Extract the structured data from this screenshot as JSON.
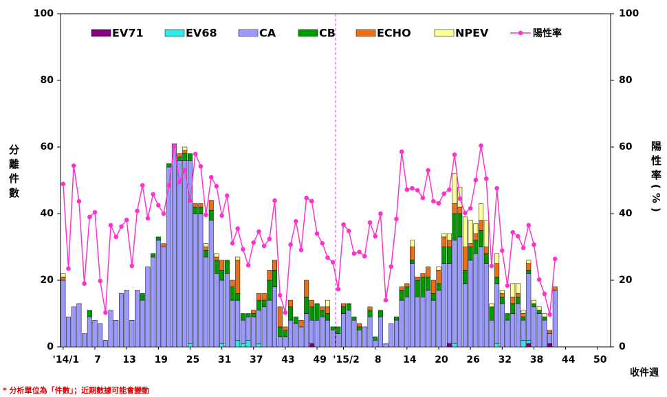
{
  "chart_data": {
    "type": "bar",
    "y_label": "分離件數",
    "y2_label": "陽性率(%)",
    "x_label": "收件週",
    "footnote": "* 分析單位為「件數」；近期數據可能會變動",
    "categories": [
      "'14/1",
      null,
      null,
      null,
      null,
      null,
      "7",
      null,
      null,
      null,
      null,
      null,
      "13",
      null,
      null,
      null,
      null,
      null,
      "19",
      null,
      null,
      null,
      null,
      null,
      "25",
      null,
      null,
      null,
      null,
      null,
      "31",
      null,
      null,
      null,
      null,
      null,
      "37",
      null,
      null,
      null,
      null,
      null,
      "43",
      null,
      null,
      null,
      null,
      null,
      "49",
      null,
      null,
      null,
      null,
      "'15/2",
      null,
      null,
      null,
      null,
      null,
      "8",
      null,
      null,
      null,
      null,
      null,
      "14",
      null,
      null,
      null,
      null,
      null,
      "20",
      null,
      null,
      null,
      null,
      null,
      "26",
      null,
      null,
      null,
      null,
      null,
      "32",
      null,
      null,
      null,
      null,
      null,
      "38",
      null,
      null,
      null,
      null,
      null,
      "44",
      null,
      null,
      null,
      null,
      null,
      "50",
      null,
      null
    ],
    "ylim": [
      0,
      100
    ],
    "yticks": [
      0,
      20,
      40,
      60,
      80,
      100
    ],
    "y2lim": [
      0,
      100
    ],
    "y2ticks": [
      0,
      20,
      40,
      60,
      80,
      100
    ],
    "legend": "top",
    "grid": false,
    "series": [
      {
        "name": "EV71",
        "type": "bar",
        "color": "#800080",
        "values": [
          0,
          0,
          0,
          0,
          0,
          0,
          0,
          0,
          0,
          0,
          0,
          0,
          0,
          0,
          0,
          0,
          0,
          0,
          0,
          0,
          0,
          0,
          0,
          0,
          0,
          0,
          0,
          0,
          0,
          0,
          0,
          0,
          0,
          0,
          0,
          0,
          0,
          0,
          0,
          0,
          0,
          0,
          0,
          0,
          0,
          0,
          0,
          1,
          0,
          0,
          0,
          0,
          0,
          0,
          0,
          0,
          0,
          0,
          0,
          0,
          0,
          0,
          0,
          0,
          0,
          0,
          0,
          0,
          0,
          0,
          0,
          0,
          0,
          1,
          0,
          0,
          0,
          0,
          0,
          0,
          0,
          0,
          0,
          0,
          0,
          0,
          0,
          0,
          1,
          0,
          0,
          0,
          1,
          0,
          null,
          null,
          null,
          null,
          null,
          null,
          null,
          null,
          null,
          null
        ]
      },
      {
        "name": "EV68",
        "type": "bar",
        "color": "#33e6e6",
        "values": [
          0,
          0,
          0,
          0,
          0,
          0,
          0,
          0,
          0,
          0,
          0,
          0,
          0,
          0,
          0,
          0,
          0,
          0,
          0,
          0,
          0,
          0,
          0,
          0,
          1,
          0,
          0,
          0,
          0,
          0,
          1,
          0,
          0,
          2,
          1,
          2,
          0,
          1,
          0,
          0,
          0,
          0,
          0,
          0,
          0,
          0,
          0,
          0,
          0,
          0,
          0,
          0,
          0,
          0,
          0,
          0,
          0,
          0,
          0,
          0,
          0,
          0,
          0,
          0,
          0,
          0,
          0,
          0,
          0,
          0,
          0,
          0,
          0,
          0,
          1,
          0,
          0,
          0,
          0,
          0,
          0,
          0,
          1,
          0,
          0,
          0,
          0,
          2,
          1,
          0,
          0,
          0,
          0,
          0,
          null,
          null,
          null,
          null,
          null,
          null,
          null,
          null,
          null,
          null
        ]
      },
      {
        "name": "CA",
        "type": "bar",
        "color": "#9999ff",
        "values": [
          20,
          9,
          12,
          13,
          4,
          9,
          8,
          7,
          2,
          11,
          8,
          16,
          17,
          8,
          17,
          14,
          24,
          27,
          32,
          30,
          54,
          61,
          56,
          56,
          55,
          40,
          40,
          27,
          38,
          22,
          19,
          22,
          14,
          12,
          7,
          7,
          9,
          10,
          12,
          14,
          18,
          3,
          3,
          8,
          7,
          6,
          10,
          7,
          8,
          9,
          8,
          5,
          4,
          10,
          11,
          8,
          5,
          6,
          9,
          2,
          9,
          1,
          7,
          8,
          14,
          15,
          25,
          15,
          15,
          17,
          14,
          17,
          25,
          24,
          31,
          33,
          19,
          26,
          28,
          30,
          25,
          8,
          18,
          13,
          8,
          10,
          13,
          6,
          20,
          12,
          10,
          8,
          3,
          17,
          null,
          null,
          null,
          null,
          null,
          null,
          null,
          null,
          null,
          null
        ]
      },
      {
        "name": "CB",
        "type": "bar",
        "color": "#009900",
        "values": [
          0,
          0,
          0,
          0,
          0,
          2,
          0,
          0,
          0,
          0,
          0,
          0,
          0,
          0,
          0,
          2,
          0,
          1,
          1,
          0,
          1,
          0,
          1,
          2,
          2,
          2,
          2,
          2,
          3,
          4,
          3,
          4,
          4,
          2,
          2,
          1,
          1,
          3,
          2,
          6,
          5,
          3,
          2,
          4,
          2,
          0,
          5,
          4,
          5,
          2,
          2,
          1,
          2,
          2,
          2,
          1,
          1,
          0,
          2,
          1,
          2,
          0,
          0,
          1,
          3,
          3,
          1,
          5,
          6,
          4,
          2,
          2,
          5,
          5,
          8,
          7,
          4,
          4,
          4,
          5,
          3,
          4,
          2,
          2,
          2,
          3,
          2,
          1,
          1,
          1,
          1,
          1,
          0,
          0,
          null,
          null,
          null,
          null,
          null,
          null,
          null,
          null,
          null,
          null
        ]
      },
      {
        "name": "ECHO",
        "type": "bar",
        "color": "#e8701a",
        "values": [
          1,
          0,
          0,
          0,
          0,
          0,
          0,
          0,
          0,
          0,
          0,
          0,
          0,
          0,
          0,
          0,
          0,
          0,
          0,
          1,
          0,
          0,
          1,
          1,
          0,
          1,
          1,
          1,
          3,
          1,
          3,
          0,
          2,
          10,
          0,
          0,
          1,
          2,
          2,
          3,
          3,
          6,
          1,
          2,
          0,
          2,
          5,
          2,
          0,
          1,
          2,
          0,
          0,
          1,
          0,
          0,
          1,
          0,
          1,
          0,
          0,
          0,
          0,
          0,
          1,
          1,
          4,
          1,
          1,
          3,
          4,
          4,
          3,
          2,
          3,
          2,
          7,
          1,
          2,
          3,
          2,
          0,
          4,
          1,
          0,
          2,
          1,
          1,
          2,
          0,
          0,
          0,
          1,
          1,
          null,
          null,
          null,
          null,
          null,
          null,
          null,
          null,
          null,
          null
        ]
      },
      {
        "name": "NPEV",
        "type": "bar",
        "color": "#ffff99",
        "values": [
          1,
          0,
          0,
          0,
          0,
          0,
          0,
          0,
          0,
          0,
          0,
          0,
          0,
          0,
          0,
          0,
          0,
          0,
          0,
          0,
          0,
          0,
          0,
          1,
          0,
          0,
          0,
          1,
          0,
          1,
          0,
          0,
          0,
          1,
          0,
          0,
          0,
          0,
          0,
          0,
          0,
          0,
          0,
          0,
          0,
          0,
          0,
          0,
          0,
          0,
          2,
          0,
          0,
          0,
          0,
          0,
          0,
          0,
          0,
          0,
          0,
          0,
          0,
          0,
          0,
          0,
          2,
          0,
          0,
          0,
          0,
          1,
          1,
          2,
          9,
          6,
          9,
          7,
          3,
          5,
          8,
          1,
          3,
          1,
          0,
          4,
          3,
          1,
          1,
          1,
          1,
          1,
          0,
          0,
          null,
          null,
          null,
          null,
          null,
          null,
          null,
          null,
          null,
          null
        ]
      },
      {
        "name": "陽性率",
        "type": "line",
        "axis": "y2",
        "color": "#ff33cc",
        "values": [
          48.9,
          23.5,
          54.4,
          43.7,
          19,
          39,
          40.4,
          19.8,
          10.3,
          36.5,
          33,
          36.1,
          38.1,
          24.3,
          40.8,
          48.5,
          38.6,
          45.8,
          42.5,
          40,
          48.5,
          60.4,
          49.5,
          53,
          43.9,
          57.9,
          54.2,
          39.6,
          50.9,
          48.2,
          39.4,
          45.4,
          31.1,
          35.5,
          29.3,
          24.5,
          31.3,
          34.6,
          30.3,
          32.4,
          43.9,
          15.5,
          10.3,
          30.7,
          37.7,
          29.1,
          44.7,
          43.7,
          34,
          31.1,
          26.8,
          25.4,
          17.3,
          36.7,
          34.8,
          28,
          28.5,
          27.2,
          37.3,
          33.2,
          40,
          14,
          24.1,
          38.4,
          58.6,
          47.2,
          47.6,
          47,
          44.7,
          53,
          43.7,
          43.1,
          46,
          47.2,
          57.7,
          44.5,
          40.2,
          41.6,
          50.1,
          60.4,
          50.5,
          24.3,
          47.6,
          28.9,
          18.4,
          34.4,
          33.2,
          29.7,
          36.5,
          30.7,
          20.2,
          15.9,
          9.7,
          26.4,
          null,
          null,
          null,
          null,
          null,
          null,
          null,
          null,
          null,
          null
        ]
      }
    ]
  }
}
